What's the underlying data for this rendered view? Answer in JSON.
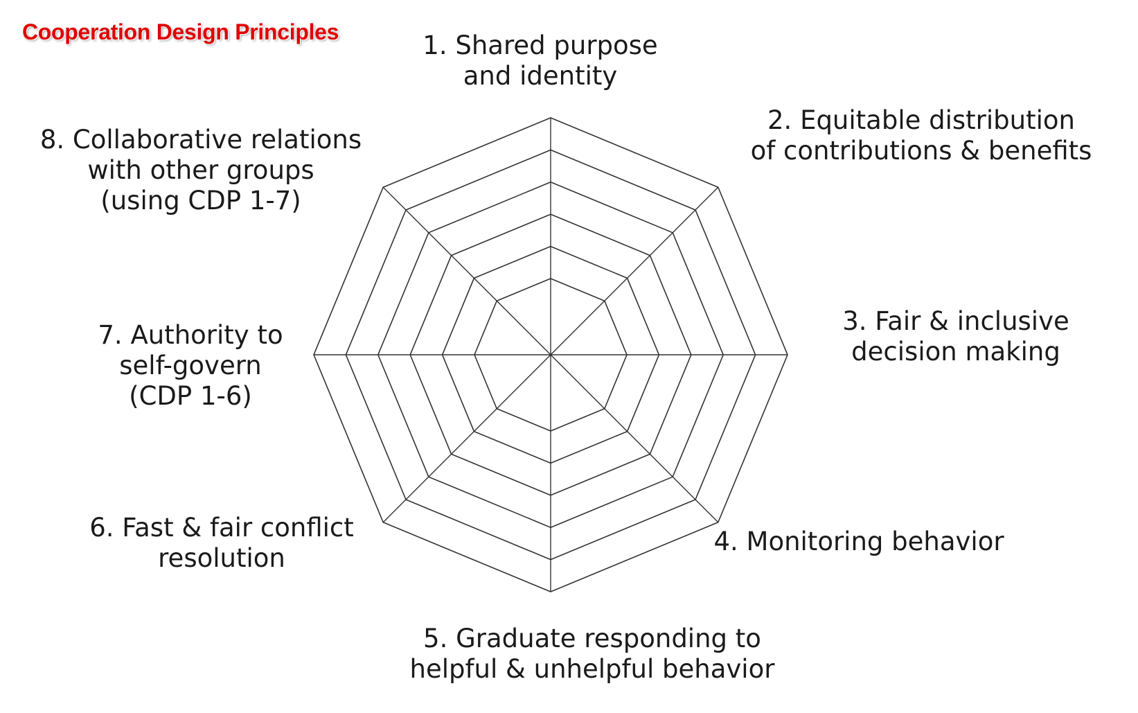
{
  "title": "Cooperation Design Principles",
  "colors": {
    "title": "#e00000",
    "grid": "#333333",
    "text": "#1a1a1a"
  },
  "axes": [
    {
      "lines": [
        "1. Shared purpose",
        "and identity"
      ]
    },
    {
      "lines": [
        "2. Equitable distribution",
        "of contributions & benefits"
      ]
    },
    {
      "lines": [
        "3. Fair & inclusive",
        "decision making"
      ]
    },
    {
      "lines": [
        "4. Monitoring behavior"
      ]
    },
    {
      "lines": [
        "5. Graduate responding to",
        "helpful & unhelpful behavior"
      ]
    },
    {
      "lines": [
        "6. Fast & fair conflict",
        "resolution"
      ]
    },
    {
      "lines": [
        "7. Authority to",
        "self-govern",
        "(CDP 1-6)"
      ]
    },
    {
      "lines": [
        "8. Collaborative relations",
        "with other groups",
        "(using CDP 1-7)"
      ]
    }
  ],
  "ring_count": 6
}
